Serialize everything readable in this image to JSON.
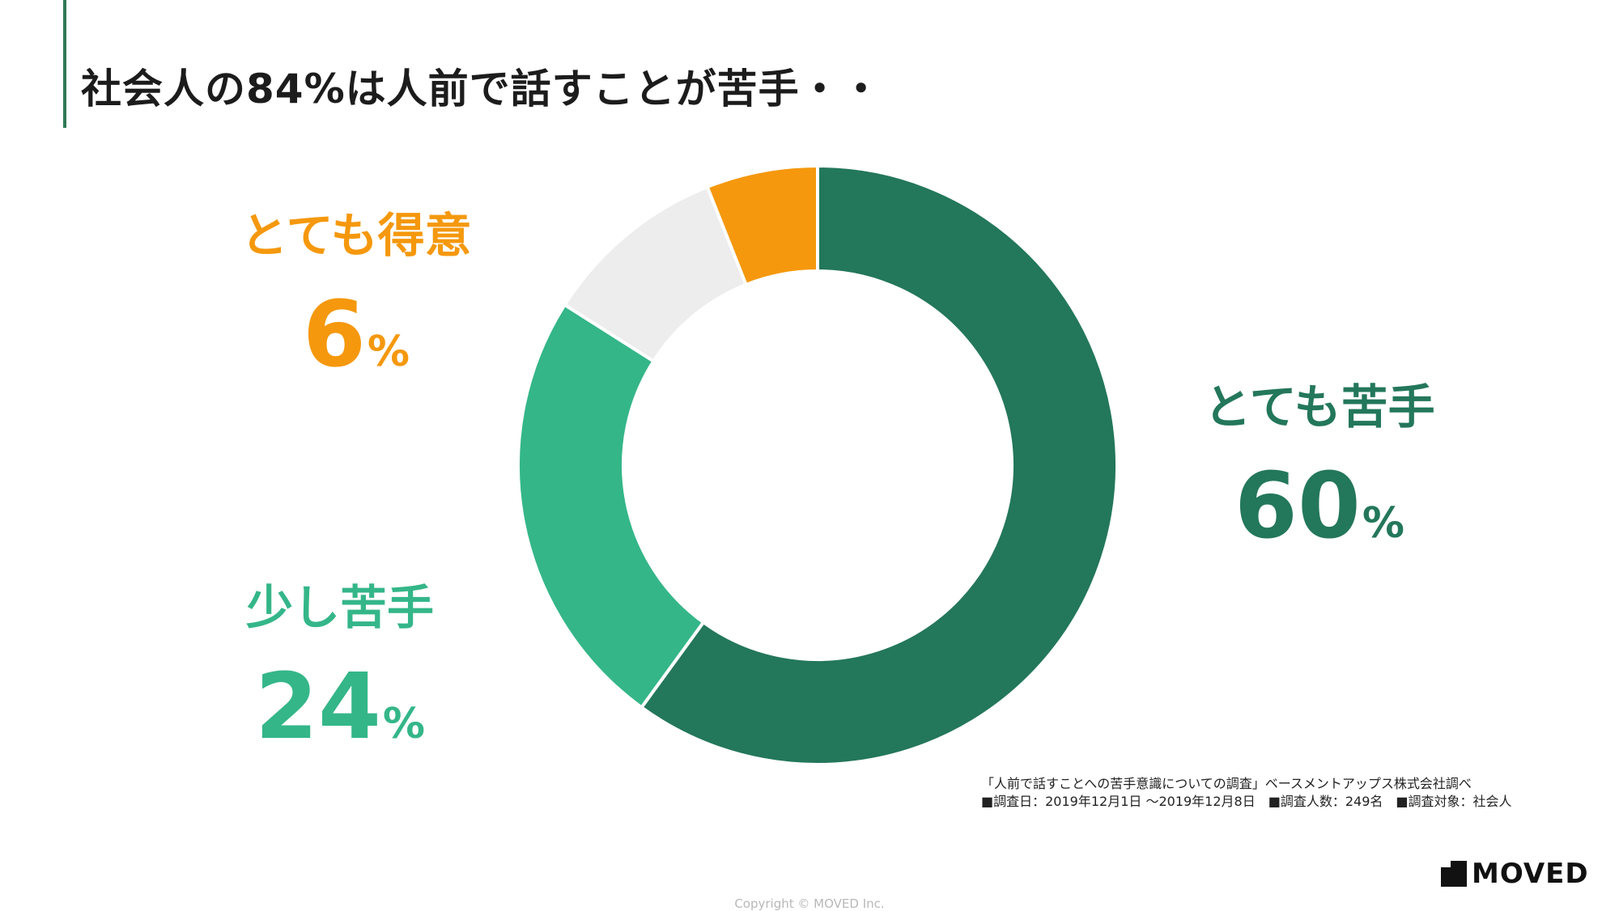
{
  "title": "社会人の84%は人前で話すことが苦手・・",
  "chart_data": {
    "type": "donut",
    "unit": "%",
    "slices": [
      {
        "name": "とても苦手",
        "value": 60,
        "color": "#23775a"
      },
      {
        "name": "少し苦手",
        "value": 24,
        "color": "#34b689"
      },
      {
        "name": "",
        "value": 10,
        "color": "#ededed"
      },
      {
        "name": "とても得意",
        "value": 6,
        "color": "#f5980d"
      }
    ]
  },
  "labels": {
    "very_weak": {
      "name": "とても苦手",
      "value": "60",
      "unit": "%",
      "color": "#23775a"
    },
    "somewhat_weak": {
      "name": "少し苦手",
      "value": "24",
      "unit": "%",
      "color": "#34b689"
    },
    "very_good": {
      "name": "とても得意",
      "value": "6",
      "unit": "%",
      "color": "#f5980d"
    }
  },
  "source": {
    "line1": "「人前で話すことへの苦手意識についての調査」ベースメントアップス株式会社調べ",
    "line2": "■調査日：2019年12月1日 ～2019年12月8日　■調査人数：249名　■調査対象：社会人"
  },
  "logo": "MOVED",
  "copyright": "Copyright © MOVED Inc."
}
